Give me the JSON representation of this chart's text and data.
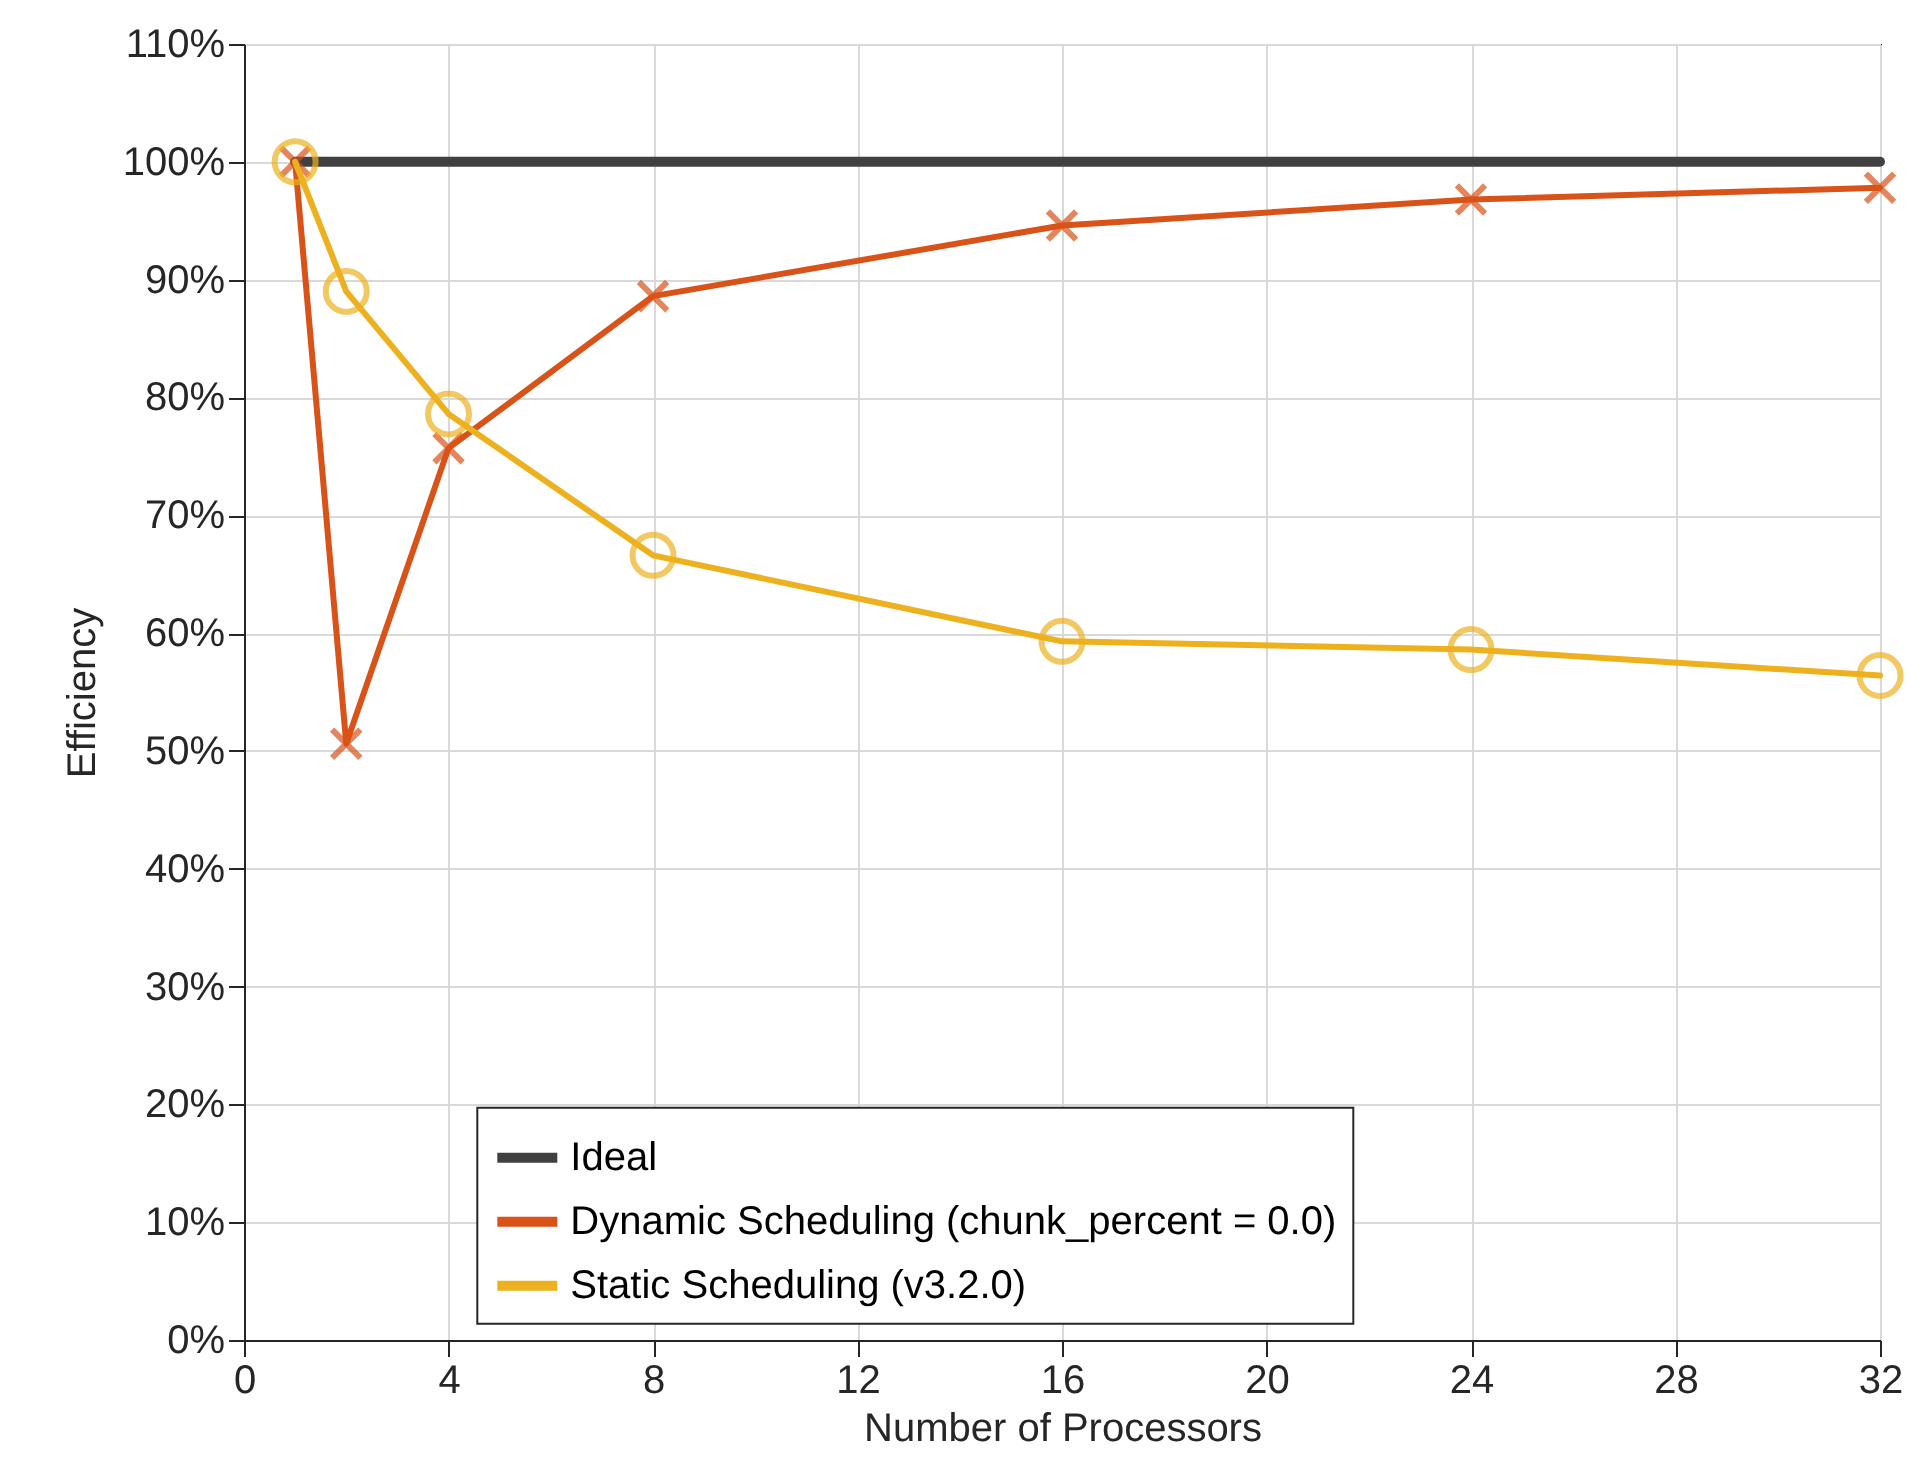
{
  "chart_data": {
    "type": "line",
    "xlabel": "Number of Processors",
    "ylabel": "Efficiency",
    "xlim": [
      0,
      32
    ],
    "xticks": [
      0,
      4,
      8,
      12,
      16,
      20,
      24,
      28,
      32
    ],
    "ylim": [
      0,
      110
    ],
    "yticks": [
      {
        "value": 0,
        "label": "0%"
      },
      {
        "value": 10,
        "label": "10%"
      },
      {
        "value": 20,
        "label": "20%"
      },
      {
        "value": 30,
        "label": "30%"
      },
      {
        "value": 40,
        "label": "40%"
      },
      {
        "value": 50,
        "label": "50%"
      },
      {
        "value": 60,
        "label": "60%"
      },
      {
        "value": 70,
        "label": "70%"
      },
      {
        "value": 80,
        "label": "80%"
      },
      {
        "value": 90,
        "label": "90%"
      },
      {
        "value": 100,
        "label": "100%"
      },
      {
        "value": 110,
        "label": "110%"
      }
    ],
    "grid": true,
    "legend": "bottom",
    "line_style": "solid",
    "series": [
      {
        "name": "Ideal",
        "color": "#404040",
        "marker": "none",
        "x": [
          1,
          32
        ],
        "values": [
          100,
          100
        ]
      },
      {
        "name": "Dynamic Scheduling (chunk_percent = 0.0)",
        "color": "#d95319",
        "marker": "cross",
        "x": [
          1,
          2,
          4,
          8,
          16,
          24,
          32
        ],
        "values": [
          100,
          50.6,
          75.7,
          88.6,
          94.6,
          96.8,
          97.8
        ]
      },
      {
        "name": "Static Scheduling (v3.2.0)",
        "color": "#edb120",
        "marker": "circle",
        "x": [
          1,
          2,
          4,
          8,
          16,
          24,
          32
        ],
        "values": [
          100,
          89,
          78.6,
          66.6,
          59.3,
          58.6,
          56.4
        ]
      }
    ]
  }
}
